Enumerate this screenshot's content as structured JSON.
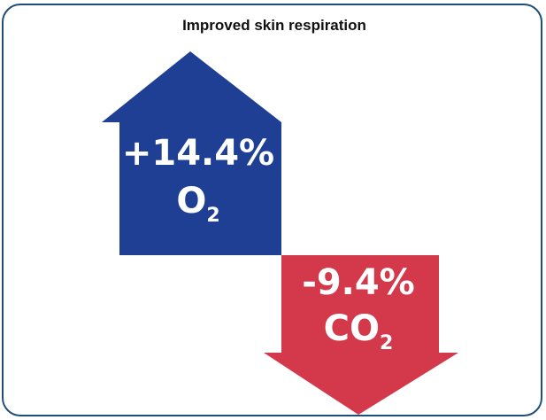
{
  "title": "Improved skin respiration",
  "arrows": [
    {
      "direction": "up",
      "color": "#1f3f94",
      "value": "+14.4%",
      "gas": "O",
      "subscript": "2"
    },
    {
      "direction": "down",
      "color": "#d4394b",
      "value": "-9.4%",
      "gas": "CO",
      "subscript": "2"
    }
  ]
}
